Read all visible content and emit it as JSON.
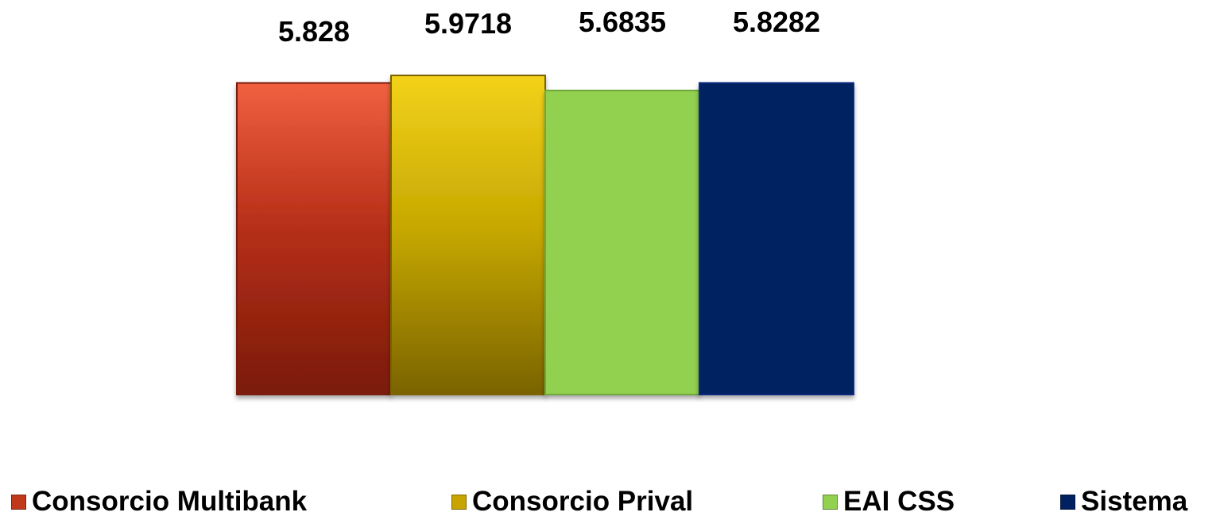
{
  "chart_data": {
    "type": "bar",
    "categories": [
      "Consorcio Multibank",
      "Consorcio Prival",
      "EAI CSS",
      "Sistema"
    ],
    "values": [
      5.828,
      5.9718,
      5.6835,
      5.8282
    ],
    "value_labels": [
      "5.828",
      "5.9718",
      "5.6835",
      "5.8282"
    ],
    "colors": [
      "#c0391b",
      "#c9a400",
      "#92d050",
      "#002060"
    ],
    "title": "",
    "xlabel": "",
    "ylabel": "",
    "grid": false,
    "legend_position": "bottom",
    "legend": [
      "Consorcio Multibank",
      "Consorcio Prival",
      "EAI CSS",
      "Sistema"
    ]
  }
}
